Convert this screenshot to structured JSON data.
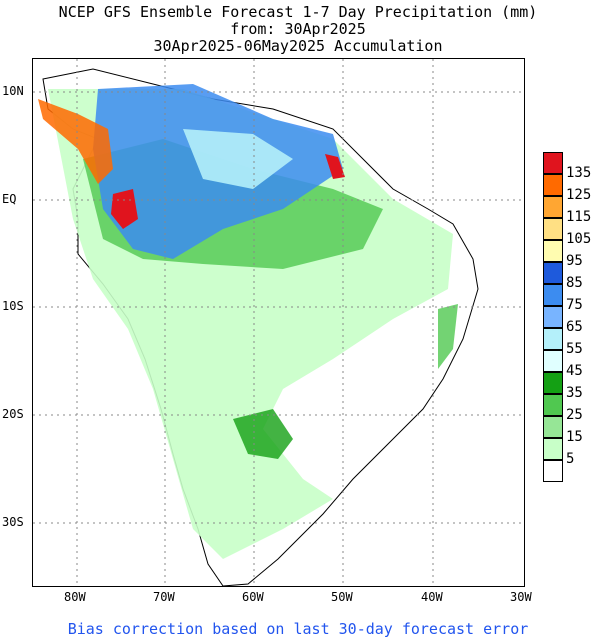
{
  "title": {
    "line1": "NCEP GFS Ensemble Forecast 1-7 Day Precipitation (mm)",
    "line2": "from: 30Apr2025",
    "line3": "30Apr2025-06May2025 Accumulation"
  },
  "axes": {
    "longitudes": [
      "80W",
      "70W",
      "60W",
      "50W",
      "40W",
      "30W"
    ],
    "latitudes": [
      "10N",
      "EQ",
      "10S",
      "20S",
      "30S"
    ]
  },
  "legend": {
    "labels": [
      "135",
      "125",
      "115",
      "105",
      "95",
      "85",
      "75",
      "65",
      "55",
      "45",
      "35",
      "25",
      "15",
      "5"
    ],
    "colors": [
      "#e0141e",
      "#ff6a00",
      "#ffa632",
      "#ffe084",
      "#fffcb0",
      "#1e5adc",
      "#3c8cf0",
      "#78b4ff",
      "#b4f0fa",
      "#e0ffff",
      "#14a014",
      "#50c850",
      "#96e696",
      "#c8ffc8",
      "#ffffff"
    ]
  },
  "footer": "Bias correction based on last 30-day forecast error"
}
